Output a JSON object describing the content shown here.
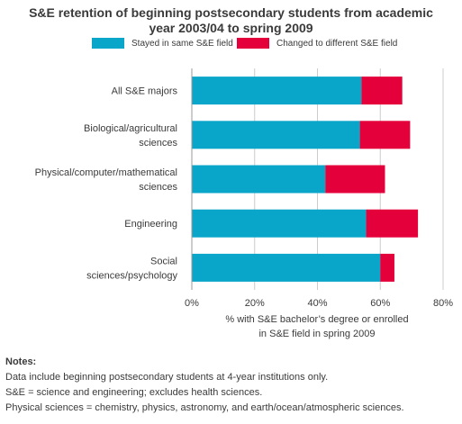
{
  "title_lines": [
    "S&E retention of beginning postsecondary students from academic",
    "year 2003/04 to spring 2009"
  ],
  "chart_data": {
    "type": "bar",
    "orientation": "horizontal",
    "stacked": true,
    "categories": [
      [
        "All S&E majors"
      ],
      [
        "Biological/agricultural",
        "sciences"
      ],
      [
        "Physical/computer/mathematical",
        "sciences"
      ],
      [
        "Engineering"
      ],
      [
        "Social",
        "sciences/psychology"
      ]
    ],
    "series": [
      {
        "name": "Stayed in same S&E field",
        "color": "#0aa6c9",
        "values": [
          54,
          53.5,
          42.5,
          55.5,
          60
        ]
      },
      {
        "name": "Changed to different S&E field",
        "color": "#e4003a",
        "values": [
          13,
          16,
          19,
          16.5,
          4.5
        ]
      }
    ],
    "xlim": [
      0,
      80
    ],
    "xticks": [
      0,
      20,
      40,
      60,
      80
    ],
    "xtick_labels": [
      "0%",
      "20%",
      "40%",
      "60%",
      "80%"
    ],
    "xlabel_lines": [
      "% with S&E bachelor’s degree or enrolled",
      "in S&E field in spring 2009"
    ],
    "grid": "vertical",
    "legend_position": "top"
  },
  "notes": {
    "heading": "Notes:",
    "lines": [
      "Data include beginning postsecondary students at 4-year institutions only.",
      "S&E = science and engineering; excludes health sciences.",
      "Physical sciences = chemistry, physics, astronomy, and earth/ocean/atmospheric sciences."
    ]
  },
  "colors": {
    "text": "#3a3a3a",
    "grid": "#cccccc",
    "axis": "#999999"
  }
}
